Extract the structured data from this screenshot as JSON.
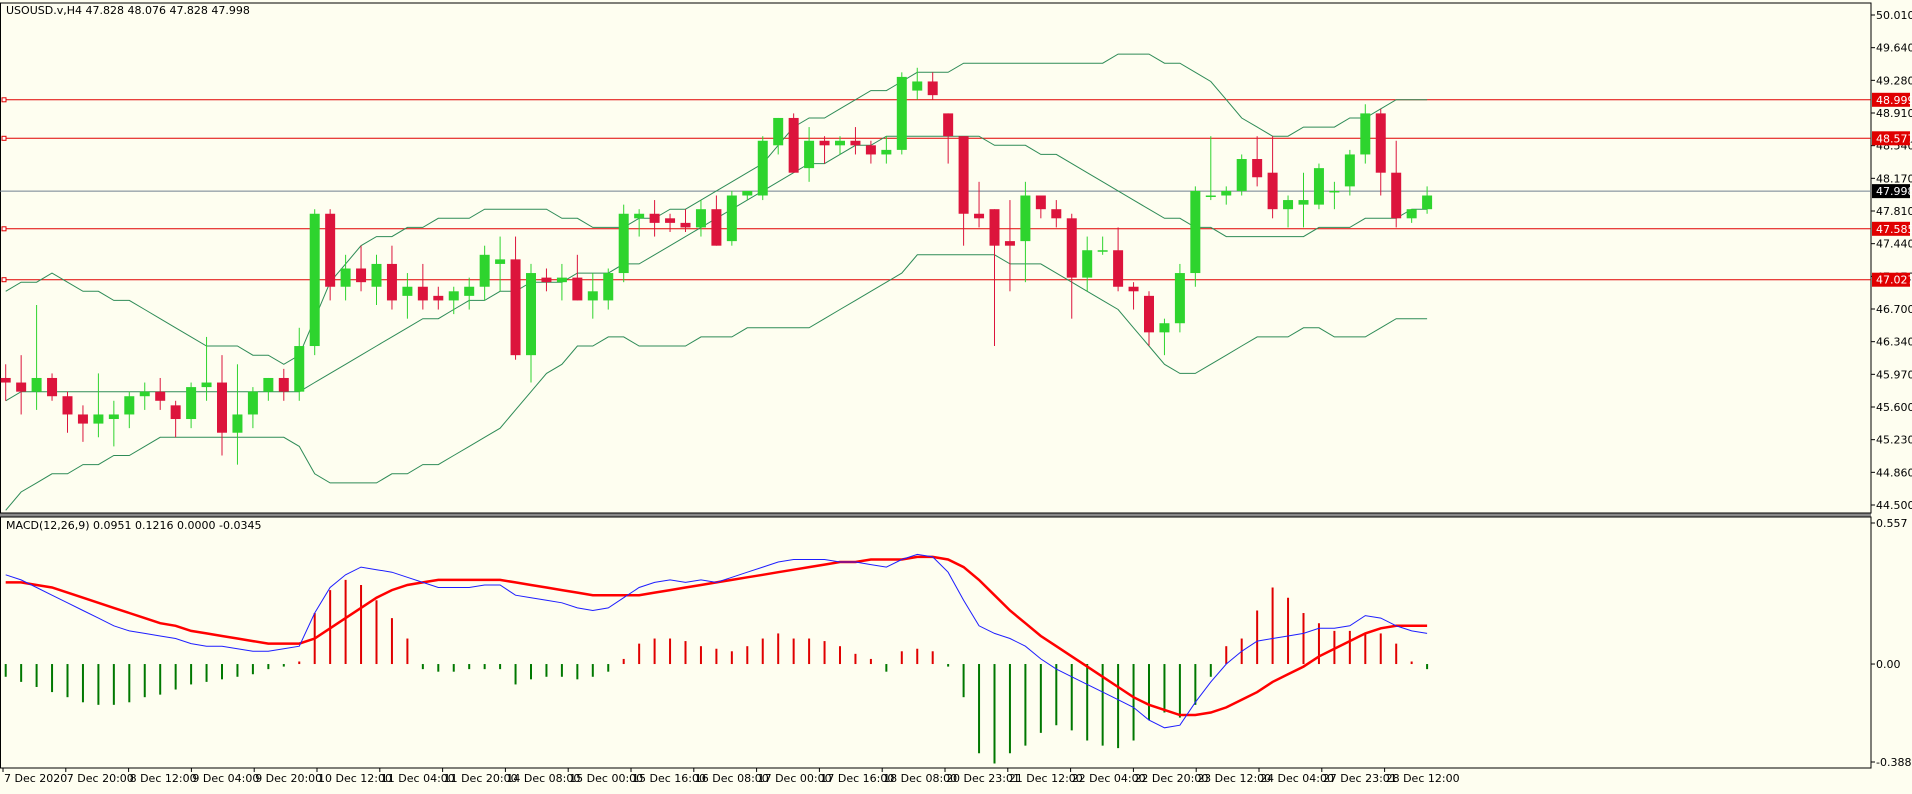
{
  "header": {
    "symbol": "USOUSD.v,H4",
    "ohlc": "47.828 48.076 47.828 47.998"
  },
  "macd_header": {
    "title": "MACD(12,26,9)",
    "values": "0.0951 0.1216 0.0000 -0.0345"
  },
  "colors": {
    "background": "#fefef0",
    "bull": "#2ed42e",
    "bear": "#dc143c",
    "bands": "#2e8b57",
    "levels": "#e00000",
    "bid_line": "#708090",
    "macd_line": "#1e1eff",
    "signal_line": "#ff0000",
    "hist_pos": "#e00000",
    "hist_neg": "#007800"
  },
  "chart_data": [
    {
      "type": "candlestick",
      "price_axis_ticks": [
        "50.010",
        "49.640",
        "49.280",
        "48.910",
        "48.540",
        "48.170",
        "47.810",
        "47.440",
        "47.070",
        "46.700",
        "46.340",
        "45.970",
        "45.600",
        "45.230",
        "44.860",
        "44.500"
      ],
      "ylim": [
        44.47,
        50.06
      ],
      "time_axis_labels": [
        "7 Dec 2020",
        "7 Dec 20:00",
        "8 Dec 12:00",
        "9 Dec 04:00",
        "9 Dec 20:00",
        "10 Dec 12:00",
        "11 Dec 04:00",
        "11 Dec 20:00",
        "14 Dec 08:00",
        "15 Dec 00:00",
        "15 Dec 16:00",
        "16 Dec 08:00",
        "17 Dec 00:00",
        "17 Dec 16:00",
        "18 Dec 08:00",
        "20 Dec 23:01",
        "21 Dec 12:00",
        "22 Dec 04:00",
        "22 Dec 20:00",
        "23 Dec 12:00",
        "24 Dec 04:00",
        "27 Dec 23:01",
        "28 Dec 12:00"
      ],
      "horizontal_levels": [
        {
          "label": "48.999",
          "value": 48.999
        },
        {
          "label": "48.577",
          "value": 48.577
        },
        {
          "label": "47.585",
          "value": 47.585
        },
        {
          "label": "47.027",
          "value": 47.027
        }
      ],
      "current_price": {
        "label": "47.998",
        "value": 47.998
      },
      "candles": [
        [
          45.95,
          46.1,
          45.7,
          45.9
        ],
        [
          45.9,
          46.2,
          45.55,
          45.8
        ],
        [
          45.8,
          46.75,
          45.6,
          45.95
        ],
        [
          45.95,
          46.0,
          45.7,
          45.75
        ],
        [
          45.75,
          45.8,
          45.35,
          45.55
        ],
        [
          45.55,
          45.65,
          45.25,
          45.45
        ],
        [
          45.45,
          46.0,
          45.3,
          45.55
        ],
        [
          45.5,
          45.7,
          45.2,
          45.55
        ],
        [
          45.55,
          45.8,
          45.4,
          45.75
        ],
        [
          45.75,
          45.9,
          45.6,
          45.8
        ],
        [
          45.8,
          45.95,
          45.6,
          45.7
        ],
        [
          45.65,
          45.7,
          45.3,
          45.5
        ],
        [
          45.5,
          45.9,
          45.4,
          45.85
        ],
        [
          45.85,
          46.4,
          45.7,
          45.9
        ],
        [
          45.9,
          46.2,
          45.1,
          45.35
        ],
        [
          45.35,
          46.1,
          45.0,
          45.55
        ],
        [
          45.55,
          45.85,
          45.4,
          45.8
        ],
        [
          45.8,
          45.95,
          45.7,
          45.95
        ],
        [
          45.95,
          46.05,
          45.7,
          45.8
        ],
        [
          45.8,
          46.5,
          45.7,
          46.3
        ],
        [
          46.3,
          47.8,
          46.2,
          47.75
        ],
        [
          47.75,
          47.8,
          46.8,
          46.95
        ],
        [
          46.95,
          47.3,
          46.8,
          47.15
        ],
        [
          47.15,
          47.4,
          46.9,
          47.0
        ],
        [
          46.95,
          47.3,
          46.75,
          47.2
        ],
        [
          47.2,
          47.4,
          46.7,
          46.8
        ],
        [
          46.85,
          47.1,
          46.6,
          46.95
        ],
        [
          46.95,
          47.2,
          46.7,
          46.8
        ],
        [
          46.85,
          46.95,
          46.7,
          46.8
        ],
        [
          46.8,
          46.95,
          46.65,
          46.9
        ],
        [
          46.85,
          47.05,
          46.7,
          46.95
        ],
        [
          46.95,
          47.4,
          46.8,
          47.3
        ],
        [
          47.2,
          47.5,
          46.9,
          47.25
        ],
        [
          47.25,
          47.5,
          46.15,
          46.2
        ],
        [
          46.2,
          47.2,
          45.9,
          47.1
        ],
        [
          47.05,
          47.15,
          46.9,
          47.0
        ],
        [
          47.0,
          47.2,
          46.8,
          47.05
        ],
        [
          47.05,
          47.3,
          46.8,
          46.8
        ],
        [
          46.8,
          47.1,
          46.6,
          46.9
        ],
        [
          46.8,
          47.15,
          46.7,
          47.1
        ],
        [
          47.1,
          47.85,
          47.0,
          47.75
        ],
        [
          47.7,
          47.8,
          47.5,
          47.75
        ],
        [
          47.75,
          47.9,
          47.5,
          47.65
        ],
        [
          47.7,
          47.75,
          47.55,
          47.65
        ],
        [
          47.65,
          47.8,
          47.55,
          47.6
        ],
        [
          47.6,
          47.9,
          47.5,
          47.8
        ],
        [
          47.8,
          47.95,
          47.4,
          47.4
        ],
        [
          47.45,
          48.0,
          47.4,
          47.95
        ],
        [
          47.95,
          48.0,
          47.9,
          48.0
        ],
        [
          47.95,
          48.6,
          47.9,
          48.55
        ],
        [
          48.5,
          48.8,
          48.4,
          48.8
        ],
        [
          48.8,
          48.85,
          48.2,
          48.2
        ],
        [
          48.25,
          48.7,
          48.1,
          48.55
        ],
        [
          48.55,
          48.6,
          48.3,
          48.5
        ],
        [
          48.5,
          48.6,
          48.4,
          48.55
        ],
        [
          48.55,
          48.7,
          48.4,
          48.5
        ],
        [
          48.5,
          48.55,
          48.3,
          48.4
        ],
        [
          48.4,
          48.6,
          48.3,
          48.45
        ],
        [
          48.45,
          49.3,
          48.4,
          49.25
        ],
        [
          49.1,
          49.35,
          49.0,
          49.2
        ],
        [
          49.2,
          49.3,
          49.0,
          49.05
        ],
        [
          48.85,
          48.85,
          48.3,
          48.6
        ],
        [
          48.6,
          48.6,
          47.4,
          47.75
        ],
        [
          47.75,
          48.1,
          47.6,
          47.7
        ],
        [
          47.8,
          47.8,
          46.3,
          47.4
        ],
        [
          47.45,
          47.9,
          46.9,
          47.4
        ],
        [
          47.45,
          48.1,
          47.0,
          47.95
        ],
        [
          47.95,
          47.95,
          47.7,
          47.8
        ],
        [
          47.8,
          47.9,
          47.6,
          47.7
        ],
        [
          47.7,
          47.75,
          46.6,
          47.05
        ],
        [
          47.05,
          47.5,
          46.9,
          47.35
        ],
        [
          47.35,
          47.5,
          47.3,
          47.35
        ],
        [
          47.35,
          47.6,
          46.9,
          46.95
        ],
        [
          46.95,
          47.0,
          46.7,
          46.9
        ],
        [
          46.85,
          46.9,
          46.3,
          46.45
        ],
        [
          46.45,
          46.6,
          46.2,
          46.55
        ],
        [
          46.55,
          47.2,
          46.45,
          47.1
        ],
        [
          47.1,
          48.05,
          46.95,
          48.0
        ],
        [
          47.95,
          48.6,
          47.9,
          47.95
        ],
        [
          47.95,
          48.05,
          47.85,
          48.0
        ],
        [
          48.0,
          48.4,
          47.95,
          48.35
        ],
        [
          48.35,
          48.6,
          48.05,
          48.15
        ],
        [
          48.2,
          48.6,
          47.7,
          47.8
        ],
        [
          47.8,
          47.95,
          47.6,
          47.9
        ],
        [
          47.85,
          48.2,
          47.6,
          47.9
        ],
        [
          47.85,
          48.3,
          47.8,
          48.25
        ],
        [
          48.0,
          48.1,
          47.8,
          48.0
        ],
        [
          48.05,
          48.45,
          47.95,
          48.4
        ],
        [
          48.4,
          48.95,
          48.3,
          48.85
        ],
        [
          48.85,
          48.9,
          47.95,
          48.2
        ],
        [
          48.2,
          48.55,
          47.6,
          47.7
        ],
        [
          47.7,
          47.8,
          47.65,
          47.8
        ],
        [
          47.8,
          48.05,
          47.75,
          47.95
        ]
      ],
      "bollinger": {
        "upper": [
          46.9,
          47.0,
          47.0,
          47.1,
          47.0,
          46.9,
          46.9,
          46.8,
          46.8,
          46.7,
          46.6,
          46.5,
          46.4,
          46.3,
          46.3,
          46.3,
          46.2,
          46.2,
          46.1,
          46.2,
          46.6,
          47.0,
          47.2,
          47.4,
          47.5,
          47.5,
          47.6,
          47.6,
          47.7,
          47.7,
          47.7,
          47.8,
          47.8,
          47.8,
          47.8,
          47.8,
          47.7,
          47.7,
          47.6,
          47.6,
          47.6,
          47.7,
          47.7,
          47.8,
          47.8,
          47.9,
          48.0,
          48.1,
          48.2,
          48.3,
          48.5,
          48.7,
          48.8,
          48.8,
          48.9,
          49.0,
          49.1,
          49.1,
          49.2,
          49.3,
          49.3,
          49.3,
          49.4,
          49.4,
          49.4,
          49.4,
          49.4,
          49.4,
          49.4,
          49.4,
          49.4,
          49.4,
          49.5,
          49.5,
          49.5,
          49.4,
          49.4,
          49.3,
          49.2,
          49.0,
          48.8,
          48.7,
          48.6,
          48.6,
          48.7,
          48.7,
          48.7,
          48.8,
          48.8,
          48.9,
          49.0,
          49.0,
          49.0
        ],
        "middle": [
          45.7,
          45.8,
          45.8,
          45.8,
          45.8,
          45.8,
          45.8,
          45.8,
          45.8,
          45.8,
          45.8,
          45.8,
          45.8,
          45.8,
          45.8,
          45.8,
          45.8,
          45.8,
          45.8,
          45.8,
          45.9,
          46.0,
          46.1,
          46.2,
          46.3,
          46.4,
          46.5,
          46.6,
          46.6,
          46.7,
          46.8,
          46.8,
          46.9,
          46.9,
          47.0,
          47.0,
          47.0,
          47.1,
          47.1,
          47.1,
          47.2,
          47.2,
          47.3,
          47.4,
          47.5,
          47.6,
          47.7,
          47.8,
          47.9,
          48.0,
          48.1,
          48.2,
          48.3,
          48.3,
          48.4,
          48.5,
          48.5,
          48.6,
          48.6,
          48.6,
          48.6,
          48.6,
          48.6,
          48.6,
          48.5,
          48.5,
          48.5,
          48.4,
          48.4,
          48.3,
          48.2,
          48.1,
          48.0,
          47.9,
          47.8,
          47.7,
          47.7,
          47.6,
          47.6,
          47.5,
          47.5,
          47.5,
          47.5,
          47.5,
          47.5,
          47.6,
          47.6,
          47.6,
          47.7,
          47.7,
          47.7,
          47.8,
          47.8
        ],
        "lower": [
          44.5,
          44.7,
          44.8,
          44.9,
          44.9,
          45.0,
          45.0,
          45.1,
          45.1,
          45.2,
          45.3,
          45.3,
          45.3,
          45.3,
          45.3,
          45.3,
          45.3,
          45.3,
          45.3,
          45.2,
          44.9,
          44.8,
          44.8,
          44.8,
          44.8,
          44.9,
          44.9,
          45.0,
          45.0,
          45.1,
          45.2,
          45.3,
          45.4,
          45.6,
          45.8,
          46.0,
          46.1,
          46.3,
          46.3,
          46.4,
          46.4,
          46.3,
          46.3,
          46.3,
          46.3,
          46.4,
          46.4,
          46.4,
          46.5,
          46.5,
          46.5,
          46.5,
          46.5,
          46.6,
          46.7,
          46.8,
          46.9,
          47.0,
          47.1,
          47.3,
          47.3,
          47.3,
          47.3,
          47.3,
          47.3,
          47.2,
          47.2,
          47.2,
          47.1,
          47.0,
          46.9,
          46.8,
          46.7,
          46.5,
          46.3,
          46.1,
          46.0,
          46.0,
          46.1,
          46.2,
          46.3,
          46.4,
          46.4,
          46.4,
          46.5,
          46.5,
          46.4,
          46.4,
          46.4,
          46.5,
          46.6,
          46.6,
          46.6
        ]
      }
    },
    {
      "type": "macd",
      "ylim": [
        -0.3881,
        0.557
      ],
      "axis_ticks": [
        "0.557",
        "0.00",
        "-0.3881"
      ],
      "macd": [
        0.35,
        0.33,
        0.3,
        0.27,
        0.24,
        0.21,
        0.18,
        0.15,
        0.13,
        0.12,
        0.11,
        0.1,
        0.08,
        0.07,
        0.07,
        0.06,
        0.05,
        0.05,
        0.06,
        0.07,
        0.2,
        0.3,
        0.35,
        0.38,
        0.37,
        0.36,
        0.34,
        0.32,
        0.3,
        0.3,
        0.3,
        0.31,
        0.31,
        0.27,
        0.26,
        0.25,
        0.24,
        0.22,
        0.21,
        0.22,
        0.26,
        0.3,
        0.32,
        0.33,
        0.32,
        0.33,
        0.32,
        0.34,
        0.36,
        0.38,
        0.4,
        0.41,
        0.41,
        0.41,
        0.4,
        0.4,
        0.39,
        0.38,
        0.41,
        0.43,
        0.42,
        0.36,
        0.25,
        0.15,
        0.12,
        0.1,
        0.07,
        0.02,
        -0.02,
        -0.05,
        -0.08,
        -0.11,
        -0.14,
        -0.17,
        -0.22,
        -0.25,
        -0.24,
        -0.15,
        -0.07,
        0.0,
        0.05,
        0.09,
        0.1,
        0.11,
        0.12,
        0.14,
        0.14,
        0.15,
        0.19,
        0.18,
        0.15,
        0.13,
        0.12
      ],
      "signal": [
        0.32,
        0.32,
        0.31,
        0.3,
        0.28,
        0.26,
        0.24,
        0.22,
        0.2,
        0.18,
        0.16,
        0.15,
        0.13,
        0.12,
        0.11,
        0.1,
        0.09,
        0.08,
        0.08,
        0.08,
        0.1,
        0.14,
        0.18,
        0.22,
        0.26,
        0.29,
        0.31,
        0.32,
        0.33,
        0.33,
        0.33,
        0.33,
        0.33,
        0.32,
        0.31,
        0.3,
        0.29,
        0.28,
        0.27,
        0.27,
        0.27,
        0.27,
        0.28,
        0.29,
        0.3,
        0.31,
        0.32,
        0.33,
        0.34,
        0.35,
        0.36,
        0.37,
        0.38,
        0.39,
        0.4,
        0.4,
        0.41,
        0.41,
        0.41,
        0.42,
        0.42,
        0.41,
        0.38,
        0.33,
        0.27,
        0.21,
        0.16,
        0.11,
        0.07,
        0.03,
        -0.01,
        -0.05,
        -0.09,
        -0.13,
        -0.16,
        -0.18,
        -0.2,
        -0.2,
        -0.19,
        -0.17,
        -0.14,
        -0.11,
        -0.07,
        -0.04,
        -0.01,
        0.03,
        0.06,
        0.09,
        0.12,
        0.14,
        0.15,
        0.15,
        0.15
      ],
      "histogram": [
        -0.05,
        -0.07,
        -0.09,
        -0.11,
        -0.13,
        -0.15,
        -0.16,
        -0.16,
        -0.15,
        -0.13,
        -0.12,
        -0.1,
        -0.08,
        -0.07,
        -0.06,
        -0.05,
        -0.04,
        -0.02,
        -0.01,
        0.01,
        0.2,
        0.29,
        0.33,
        0.31,
        0.25,
        0.18,
        0.1,
        -0.02,
        -0.03,
        -0.03,
        -0.02,
        -0.02,
        -0.02,
        -0.08,
        -0.06,
        -0.05,
        -0.05,
        -0.06,
        -0.05,
        -0.03,
        0.02,
        0.08,
        0.1,
        0.1,
        0.09,
        0.07,
        0.06,
        0.05,
        0.07,
        0.1,
        0.12,
        0.1,
        0.1,
        0.09,
        0.07,
        0.04,
        0.02,
        -0.03,
        0.05,
        0.06,
        0.05,
        -0.01,
        -0.13,
        -0.35,
        -0.39,
        -0.35,
        -0.32,
        -0.27,
        -0.24,
        -0.26,
        -0.3,
        -0.32,
        -0.33,
        -0.3,
        -0.22,
        -0.19,
        -0.21,
        -0.16,
        -0.05,
        0.07,
        0.1,
        0.21,
        0.3,
        0.26,
        0.2,
        0.16,
        0.13,
        0.13,
        0.12,
        0.12,
        0.08,
        0.01,
        -0.02
      ]
    }
  ]
}
